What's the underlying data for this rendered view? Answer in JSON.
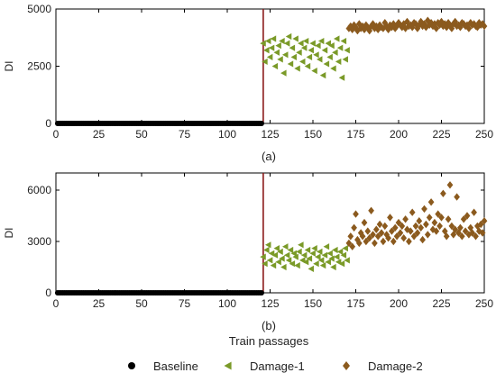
{
  "figure": {
    "xlabel": "Train passages",
    "legend_position": "bottom-center",
    "legend": [
      {
        "label": "Baseline",
        "marker": "circle",
        "color": "#000000"
      },
      {
        "label": "Damage-1",
        "marker": "triangle-left",
        "color": "#7a9a28"
      },
      {
        "label": "Damage-2",
        "marker": "diamond",
        "color": "#8b5a1e"
      }
    ],
    "colors": {
      "baseline": "#000000",
      "damage1": "#7a9a28",
      "damage2": "#8b5a1e",
      "threshold_line": "#8b1a1a"
    }
  },
  "chart_data": [
    {
      "type": "scatter",
      "panel_label": "(a)",
      "ylabel": "DI",
      "xlim": [
        0,
        250
      ],
      "ylim": [
        0,
        5000
      ],
      "xticks": [
        0,
        25,
        50,
        75,
        100,
        125,
        150,
        175,
        200,
        225,
        250
      ],
      "yticks": [
        0,
        2500,
        5000
      ],
      "vline_x": 121,
      "series": [
        {
          "name": "Baseline",
          "x_range": [
            1,
            120
          ],
          "y_const": 0
        },
        {
          "name": "Damage-1",
          "x": [
            121,
            122,
            123,
            124,
            125,
            126,
            127,
            128,
            129,
            130,
            131,
            132,
            133,
            134,
            135,
            136,
            137,
            138,
            139,
            140,
            141,
            142,
            143,
            144,
            145,
            146,
            147,
            148,
            149,
            150,
            151,
            152,
            153,
            154,
            155,
            156,
            157,
            158,
            159,
            160,
            161,
            162,
            163,
            164,
            165,
            166,
            167,
            168,
            169,
            170
          ],
          "y": [
            3500,
            2700,
            3200,
            3600,
            2900,
            3300,
            3700,
            2500,
            3100,
            3400,
            2800,
            3600,
            2200,
            3000,
            3500,
            3800,
            2600,
            3300,
            2900,
            3700,
            2400,
            3100,
            3500,
            2700,
            3300,
            3600,
            2500,
            2900,
            3200,
            3500,
            2300,
            3000,
            3400,
            2800,
            3600,
            2100,
            3200,
            2600,
            3500,
            2900,
            3400,
            2400,
            3100,
            3700,
            2700,
            3300,
            2000,
            3600,
            2800,
            3200
          ]
        },
        {
          "name": "Damage-2",
          "x": [
            171,
            172,
            173,
            174,
            175,
            176,
            177,
            178,
            179,
            180,
            181,
            182,
            183,
            184,
            185,
            186,
            187,
            188,
            189,
            190,
            191,
            192,
            193,
            194,
            195,
            196,
            197,
            198,
            199,
            200,
            201,
            202,
            203,
            204,
            205,
            206,
            207,
            208,
            209,
            210,
            211,
            212,
            213,
            214,
            215,
            216,
            217,
            218,
            219,
            220,
            221,
            222,
            223,
            224,
            225,
            226,
            227,
            228,
            229,
            230,
            231,
            232,
            233,
            234,
            235,
            236,
            237,
            238,
            239,
            240,
            241,
            242,
            243,
            244,
            245,
            246,
            247,
            248,
            249,
            250
          ],
          "y": [
            4150,
            4250,
            4100,
            4300,
            4200,
            4050,
            4350,
            4150,
            4250,
            4100,
            4300,
            4200,
            4050,
            4250,
            4350,
            4150,
            4250,
            4100,
            4300,
            4200,
            4150,
            4400,
            4250,
            4100,
            4300,
            4200,
            4350,
            4150,
            4250,
            4400,
            4300,
            4200,
            4350,
            4150,
            4450,
            4250,
            4300,
            4200,
            4400,
            4350,
            4150,
            4300,
            4450,
            4250,
            4350,
            4200,
            4500,
            4300,
            4400,
            4250,
            4350,
            4150,
            4400,
            4300,
            4450,
            4250,
            4350,
            4200,
            4400,
            4300,
            4150,
            4350,
            4450,
            4250,
            4300,
            4200,
            4400,
            4350,
            4250,
            4300,
            4150,
            4400,
            4300,
            4350,
            4250,
            4200,
            4400,
            4300,
            4350,
            4250
          ]
        }
      ]
    },
    {
      "type": "scatter",
      "panel_label": "(b)",
      "ylabel": "DI",
      "xlabel": "Train passages",
      "xlim": [
        0,
        250
      ],
      "ylim": [
        0,
        7000
      ],
      "xticks": [
        0,
        25,
        50,
        75,
        100,
        125,
        150,
        175,
        200,
        225,
        250
      ],
      "yticks": [
        0,
        3000,
        6000
      ],
      "vline_x": 121,
      "series": [
        {
          "name": "Baseline",
          "x_range": [
            1,
            120
          ],
          "y_const": 0
        },
        {
          "name": "Damage-1",
          "x": [
            121,
            122,
            123,
            124,
            125,
            126,
            127,
            128,
            129,
            130,
            131,
            132,
            133,
            134,
            135,
            136,
            137,
            138,
            139,
            140,
            141,
            142,
            143,
            144,
            145,
            146,
            147,
            148,
            149,
            150,
            151,
            152,
            153,
            154,
            155,
            156,
            157,
            158,
            159,
            160,
            161,
            162,
            163,
            164,
            165,
            166,
            167,
            168,
            169,
            170
          ],
          "y": [
            2100,
            1700,
            2500,
            2800,
            1900,
            2300,
            1600,
            2200,
            2600,
            1800,
            2400,
            2000,
            1500,
            2700,
            2200,
            1900,
            2500,
            1700,
            2300,
            2100,
            1600,
            2400,
            2800,
            1900,
            2200,
            1800,
            2500,
            2000,
            1400,
            2300,
            2600,
            1700,
            2100,
            2400,
            1900,
            1600,
            2200,
            2700,
            1800,
            2300,
            2000,
            1500,
            2500,
            2100,
            1800,
            2400,
            1700,
            2200,
            2600,
            1900
          ]
        },
        {
          "name": "Damage-2",
          "x": [
            171,
            172,
            173,
            174,
            175,
            176,
            177,
            178,
            179,
            180,
            181,
            182,
            183,
            184,
            185,
            186,
            187,
            188,
            189,
            190,
            191,
            192,
            193,
            194,
            195,
            196,
            197,
            198,
            199,
            200,
            201,
            202,
            203,
            204,
            205,
            206,
            207,
            208,
            209,
            210,
            211,
            212,
            213,
            214,
            215,
            216,
            217,
            218,
            219,
            220,
            221,
            222,
            223,
            224,
            225,
            226,
            227,
            228,
            229,
            230,
            231,
            232,
            233,
            234,
            235,
            236,
            237,
            238,
            239,
            240,
            241,
            242,
            243,
            244,
            245,
            246,
            247,
            248,
            249,
            250
          ],
          "y": [
            2900,
            3300,
            2700,
            3800,
            4600,
            3100,
            2900,
            3500,
            3300,
            4100,
            3000,
            3600,
            3200,
            4800,
            3400,
            2900,
            3700,
            3300,
            4000,
            3500,
            3000,
            3900,
            3400,
            3200,
            4400,
            3600,
            3000,
            3800,
            3300,
            4100,
            3500,
            3900,
            3200,
            4300,
            3700,
            3000,
            3600,
            4700,
            3300,
            3900,
            3500,
            4200,
            3800,
            3100,
            4900,
            4000,
            3400,
            4400,
            5300,
            3700,
            4100,
            3600,
            4600,
            3900,
            4400,
            5800,
            3600,
            3300,
            4300,
            6300,
            3900,
            3400,
            3700,
            5600,
            3500,
            3800,
            3300,
            4300,
            3600,
            4500,
            3400,
            3800,
            3500,
            4700,
            3300,
            3900,
            3600,
            4000,
            3500,
            4200
          ]
        }
      ]
    }
  ]
}
